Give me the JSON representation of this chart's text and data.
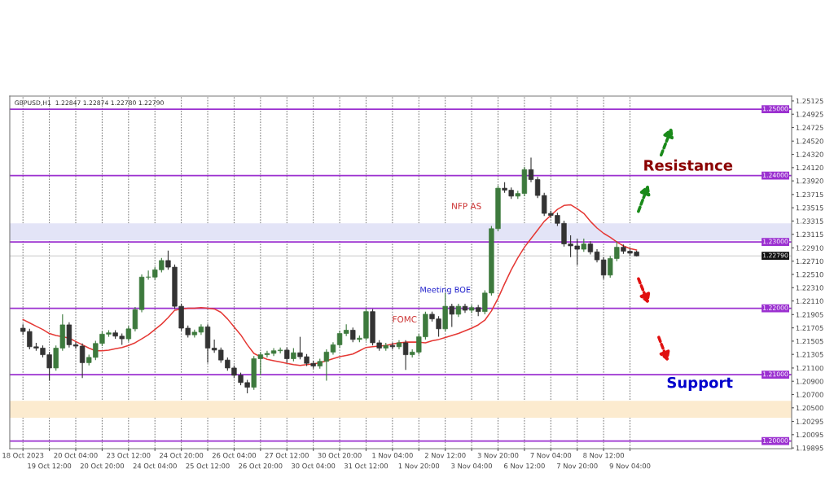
{
  "chart_data": {
    "type": "candlestick",
    "annotations": [
      "GBPUSD,H1  1.22847 1.22874 1.22780 1.22790",
      "FOMC",
      "Meeting BOE",
      "NFP AS",
      "Resistance",
      "Support"
    ],
    "categories": [
      "18 Oct 2023",
      null,
      null,
      null,
      "19 Oct 12:00",
      null,
      null,
      null,
      "20 Oct 04:00",
      null,
      null,
      null,
      "20 Oct 20:00",
      null,
      null,
      null,
      "23 Oct 12:00",
      null,
      null,
      null,
      "24 Oct 04:00",
      null,
      null,
      null,
      "24 Oct 20:00",
      null,
      null,
      null,
      "25 Oct 12:00",
      null,
      null,
      null,
      "26 Oct 04:00",
      null,
      null,
      null,
      "26 Oct 20:00",
      null,
      null,
      null,
      "27 Oct 12:00",
      null,
      null,
      null,
      "30 Oct 04:00",
      null,
      null,
      null,
      "30 Oct 20:00",
      null,
      null,
      null,
      "31 Oct 12:00",
      null,
      null,
      null,
      "1 Nov 04:00",
      null,
      null,
      null,
      "1 Nov 20:00",
      null,
      null,
      null,
      "2 Nov 12:00",
      null,
      null,
      null,
      "3 Nov 04:00",
      null,
      null,
      null,
      "3 Nov 20:00",
      null,
      null,
      null,
      "6 Nov 12:00",
      null,
      null,
      null,
      "7 Nov 04:00",
      null,
      null,
      null,
      "7 Nov 20:00",
      null,
      null,
      null,
      "8 Nov 12:00",
      null,
      null,
      null,
      "9 Nov 04:00",
      null,
      null,
      null,
      null,
      null,
      null,
      null,
      null,
      null,
      null,
      null,
      null,
      null,
      null,
      null,
      null,
      null,
      null,
      null,
      null,
      null,
      null,
      null,
      null
    ],
    "colors": [
      "#333333",
      "#333333",
      "#333333",
      "#333333",
      "#333333",
      "#3d7a3d",
      "#3d7a3d",
      "#333333",
      "#333333",
      "#333333",
      "#3d7a3d",
      "#3d7a3d",
      "#3d7a3d",
      "#3d7a3d",
      "#333333",
      "#333333",
      "#3d7a3d",
      "#3d7a3d",
      "#3d7a3d",
      "#3d7a3d",
      "#3d7a3d",
      "#3d7a3d",
      "#333333",
      "#333333",
      "#333333",
      "#333333",
      "#3d7a3d",
      "#3d7a3d",
      "#333333",
      "#333333",
      "#333333",
      "#333333",
      "#333333",
      "#333333",
      "#333333",
      "#3d7a3d",
      "#3d7a3d",
      "#3d7a3d",
      "#3d7a3d",
      "#3d7a3d",
      "#333333",
      "#3d7a3d",
      "#333333",
      "#333333",
      "#333333",
      "#3d7a3d",
      "#3d7a3d",
      "#3d7a3d",
      "#3d7a3d",
      "#3d7a3d",
      "#333333",
      "#3d7a3d",
      "#3d7a3d",
      "#333333",
      "#333333",
      "#3d7a3d",
      "#333333",
      "#3d7a3d",
      "#333333",
      "#3d7a3d",
      "#3d7a3d",
      "#3d7a3d",
      "#333333",
      "#333333",
      "#3d7a3d",
      "#333333",
      "#3d7a3d",
      "#333333",
      "#3d7a3d",
      "#333333",
      "#3d7a3d",
      "#3d7a3d",
      "#3d7a3d",
      "#333333",
      "#333333",
      "#3d7a3d",
      "#3d7a3d",
      "#333333",
      "#333333",
      "#333333",
      "#333333",
      "#333333",
      "#333333",
      "#333333",
      "#333333",
      "#3d7a3d",
      "#333333",
      "#333333",
      "#333333",
      "#3d7a3d",
      "#3d7a3d",
      "#333333",
      "#333333",
      "#333333",
      null,
      null,
      null,
      null,
      null,
      null,
      null,
      null,
      null,
      null,
      null,
      null,
      null,
      null,
      null,
      null,
      null,
      null,
      null,
      null,
      null,
      null,
      null
    ],
    "ohlc": [
      [
        1.217,
        1.2176,
        1.216,
        1.2165
      ],
      [
        1.2165,
        1.2169,
        1.2138,
        1.2142
      ],
      [
        1.2142,
        1.2148,
        1.2136,
        1.214
      ],
      [
        1.214,
        1.2144,
        1.2126,
        1.213
      ],
      [
        1.213,
        1.2134,
        1.2091,
        1.211
      ],
      [
        1.211,
        1.2144,
        1.2106,
        1.214
      ],
      [
        1.214,
        1.2191,
        1.2136,
        1.2175
      ],
      [
        1.2175,
        1.2179,
        1.2141,
        1.2145
      ],
      [
        1.2145,
        1.2149,
        1.2139,
        1.2143
      ],
      [
        1.2143,
        1.2147,
        1.2095,
        1.2118
      ],
      [
        1.2118,
        1.213,
        1.2114,
        1.2126
      ],
      [
        1.2126,
        1.2151,
        1.2122,
        1.2147
      ],
      [
        1.2147,
        1.2165,
        1.2143,
        1.2161
      ],
      [
        1.2161,
        1.2167,
        1.2157,
        1.2163
      ],
      [
        1.2163,
        1.2167,
        1.2154,
        1.2158
      ],
      [
        1.2158,
        1.2162,
        1.2145,
        1.2154
      ],
      [
        1.2154,
        1.2173,
        1.215,
        1.2169
      ],
      [
        1.2169,
        1.2202,
        1.2165,
        1.2198
      ],
      [
        1.2198,
        1.2251,
        1.2194,
        1.2247
      ],
      [
        1.2247,
        1.2257,
        1.2243,
        1.2247
      ],
      [
        1.2247,
        1.2262,
        1.2243,
        1.2258
      ],
      [
        1.2258,
        1.2276,
        1.2254,
        1.2272
      ],
      [
        1.2272,
        1.2287,
        1.2258,
        1.2262
      ],
      [
        1.2262,
        1.2266,
        1.2199,
        1.2203
      ],
      [
        1.2203,
        1.2207,
        1.2166,
        1.217
      ],
      [
        1.217,
        1.2174,
        1.2156,
        1.216
      ],
      [
        1.216,
        1.2168,
        1.2156,
        1.2164
      ],
      [
        1.2164,
        1.2176,
        1.216,
        1.2172
      ],
      [
        1.2172,
        1.2176,
        1.2118,
        1.214
      ],
      [
        1.214,
        1.2153,
        1.2133,
        1.2137
      ],
      [
        1.2137,
        1.2141,
        1.2118,
        1.2122
      ],
      [
        1.2122,
        1.2126,
        1.2106,
        1.211
      ],
      [
        1.211,
        1.2114,
        1.2095,
        1.2099
      ],
      [
        1.2099,
        1.2103,
        1.2084,
        1.2088
      ],
      [
        1.2088,
        1.2092,
        1.2072,
        1.2081
      ],
      [
        1.2081,
        1.2128,
        1.2077,
        1.2124
      ],
      [
        1.2124,
        1.2134,
        1.2099,
        1.213
      ],
      [
        1.213,
        1.2136,
        1.2126,
        1.2132
      ],
      [
        1.2132,
        1.214,
        1.2128,
        1.2136
      ],
      [
        1.2136,
        1.2141,
        1.2132,
        1.2137
      ],
      [
        1.2137,
        1.2141,
        1.2118,
        1.2124
      ],
      [
        1.2124,
        1.214,
        1.212,
        1.2133
      ],
      [
        1.2133,
        1.2157,
        1.2123,
        1.2127
      ],
      [
        1.2127,
        1.2131,
        1.2113,
        1.2117
      ],
      [
        1.2117,
        1.2121,
        1.2109,
        1.2113
      ],
      [
        1.2113,
        1.2124,
        1.2109,
        1.212
      ],
      [
        1.212,
        1.2138,
        1.2091,
        1.2134
      ],
      [
        1.2134,
        1.2149,
        1.213,
        1.2145
      ],
      [
        1.2145,
        1.2166,
        1.2141,
        1.2162
      ],
      [
        1.2162,
        1.2176,
        1.2158,
        1.2167
      ],
      [
        1.2167,
        1.2171,
        1.2149,
        1.2153
      ],
      [
        1.2153,
        1.2159,
        1.2149,
        1.2155
      ],
      [
        1.2155,
        1.22,
        1.2151,
        1.2195
      ],
      [
        1.2195,
        1.2199,
        1.2144,
        1.2148
      ],
      [
        1.2148,
        1.2152,
        1.2136,
        1.214
      ],
      [
        1.214,
        1.2148,
        1.2136,
        1.2144
      ],
      [
        1.2144,
        1.2148,
        1.2138,
        1.2142
      ],
      [
        1.2142,
        1.2152,
        1.2138,
        1.2148
      ],
      [
        1.2148,
        1.2152,
        1.2107,
        1.213
      ],
      [
        1.213,
        1.2138,
        1.2126,
        1.2134
      ],
      [
        1.2134,
        1.2161,
        1.213,
        1.2157
      ],
      [
        1.2157,
        1.2195,
        1.2153,
        1.2191
      ],
      [
        1.2191,
        1.2195,
        1.218,
        1.2184
      ],
      [
        1.2184,
        1.2188,
        1.2157,
        1.2169
      ],
      [
        1.2169,
        1.2223,
        1.2165,
        1.2203
      ],
      [
        1.2203,
        1.2207,
        1.2172,
        1.2191
      ],
      [
        1.2191,
        1.2207,
        1.2187,
        1.2203
      ],
      [
        1.2203,
        1.2207,
        1.2193,
        1.2197
      ],
      [
        1.2197,
        1.2205,
        1.2193,
        1.2201
      ],
      [
        1.2201,
        1.2205,
        1.2188,
        1.2195
      ],
      [
        1.2195,
        1.2227,
        1.2191,
        1.2223
      ],
      [
        1.2223,
        1.2324,
        1.2219,
        1.232
      ],
      [
        1.232,
        1.2385,
        1.2316,
        1.2381
      ],
      [
        1.2381,
        1.239,
        1.2374,
        1.2378
      ],
      [
        1.2378,
        1.2382,
        1.2365,
        1.2369
      ],
      [
        1.2369,
        1.2377,
        1.2365,
        1.2373
      ],
      [
        1.2373,
        1.2413,
        1.2369,
        1.2409
      ],
      [
        1.2409,
        1.2427,
        1.239,
        1.2394
      ],
      [
        1.2394,
        1.2398,
        1.2366,
        1.237
      ],
      [
        1.237,
        1.2374,
        1.2339,
        1.2343
      ],
      [
        1.2343,
        1.2347,
        1.2336,
        1.234
      ],
      [
        1.234,
        1.2344,
        1.2324,
        1.2328
      ],
      [
        1.2328,
        1.2332,
        1.2293,
        1.2297
      ],
      [
        1.2297,
        1.231,
        1.2277,
        1.2294
      ],
      [
        1.2294,
        1.2305,
        1.2265,
        1.2289
      ],
      [
        1.2289,
        1.2305,
        1.2285,
        1.2297
      ],
      [
        1.2297,
        1.2301,
        1.2281,
        1.2285
      ],
      [
        1.2285,
        1.2289,
        1.2269,
        1.2273
      ],
      [
        1.2273,
        1.2277,
        1.2244,
        1.225
      ],
      [
        1.225,
        1.2279,
        1.2246,
        1.2275
      ],
      [
        1.2275,
        1.2301,
        1.2271,
        1.2292
      ],
      [
        1.2292,
        1.2296,
        1.2282,
        1.2286
      ],
      [
        1.2286,
        1.229,
        1.2279,
        1.2283
      ],
      [
        1.2285,
        1.2287,
        1.2278,
        1.2279
      ],
      null,
      null,
      null,
      null,
      null,
      null,
      null,
      null,
      null,
      null,
      null,
      null,
      null,
      null,
      null,
      null,
      null,
      null,
      null,
      null,
      null,
      null,
      null
    ],
    "series": [
      {
        "type": "line",
        "color": "#e53935",
        "values": [
          1.2183,
          1.2178,
          1.2173,
          1.2168,
          1.2162,
          1.2159,
          1.2157,
          1.2155,
          1.215,
          1.2145,
          1.214,
          1.2136,
          1.2136,
          1.2137,
          1.2139,
          1.2141,
          1.2144,
          1.2148,
          1.2154,
          1.216,
          1.2168,
          1.2176,
          1.2186,
          1.2197,
          1.2199,
          1.22,
          1.22,
          1.2201,
          1.22,
          1.2199,
          1.2194,
          1.2184,
          1.2172,
          1.216,
          1.2145,
          1.2132,
          1.2127,
          1.2123,
          1.2121,
          1.2119,
          1.2117,
          1.2115,
          1.2114,
          1.2115,
          1.2116,
          1.2118,
          1.2121,
          1.2124,
          1.2127,
          1.2129,
          1.2131,
          1.2136,
          1.2141,
          1.2142,
          1.2143,
          1.2144,
          1.2146,
          1.2148,
          1.2149,
          1.2149,
          1.2149,
          1.2148,
          1.2151,
          1.2153,
          1.2156,
          1.2159,
          1.2162,
          1.2166,
          1.217,
          1.2175,
          1.2182,
          1.2196,
          1.2215,
          1.2237,
          1.2258,
          1.2276,
          1.2292,
          1.2305,
          1.2318,
          1.2331,
          1.234,
          1.2349,
          1.2355,
          1.2356,
          1.235,
          1.2343,
          1.2331,
          1.2321,
          1.2313,
          1.2307,
          1.23,
          1.2294,
          1.229,
          1.2288,
          null,
          null,
          null,
          null,
          null,
          null,
          null,
          null,
          null,
          null,
          null,
          null,
          null,
          null,
          null,
          null,
          null,
          null,
          null,
          null,
          null,
          null,
          null
        ]
      }
    ],
    "ylim": [
      1.19884,
      1.25198
    ],
    "yticks": [
      {
        "value": 1.25125,
        "label": "1.25125"
      },
      {
        "value": 1.24925,
        "label": "1.24925"
      },
      {
        "value": 1.24725,
        "label": "1.24725"
      },
      {
        "value": 1.2452,
        "label": "1.24520"
      },
      {
        "value": 1.2432,
        "label": "1.24320"
      },
      {
        "value": 1.2412,
        "label": "1.24120"
      },
      {
        "value": 1.2392,
        "label": "1.23920"
      },
      {
        "value": 1.23715,
        "label": "1.23715"
      },
      {
        "value": 1.23515,
        "label": "1.23515"
      },
      {
        "value": 1.23315,
        "label": "1.23315"
      },
      {
        "value": 1.23115,
        "label": "1.23115"
      },
      {
        "value": 1.2291,
        "label": "1.22910"
      },
      {
        "value": 1.2271,
        "label": "1.22710"
      },
      {
        "value": 1.2251,
        "label": "1.22510"
      },
      {
        "value": 1.2231,
        "label": "1.22310"
      },
      {
        "value": 1.2211,
        "label": "1.22110"
      },
      {
        "value": 1.21905,
        "label": "1.21905"
      },
      {
        "value": 1.21705,
        "label": "1.21705"
      },
      {
        "value": 1.21505,
        "label": "1.21505"
      },
      {
        "value": 1.21305,
        "label": "1.21305"
      },
      {
        "value": 1.211,
        "label": "1.21100"
      },
      {
        "value": 1.209,
        "label": "1.20900"
      },
      {
        "value": 1.207,
        "label": "1.20700"
      },
      {
        "value": 1.205,
        "label": "1.20500"
      },
      {
        "value": 1.20295,
        "label": "1.20295"
      },
      {
        "value": 1.20095,
        "label": "1.20095"
      },
      {
        "value": 1.19895,
        "label": "1.19895"
      }
    ],
    "grid": "x",
    "bands": [
      {
        "axis": "y",
        "from": 1.23023,
        "to": 1.23279,
        "color": "#e3e4f7"
      },
      {
        "axis": "y",
        "from": 1.20349,
        "to": 1.20605,
        "color": "#fcebcf"
      }
    ],
    "ref_lines": [
      {
        "axis": "y",
        "value": 1.25,
        "label": "1.25000",
        "color": "#9b30d0"
      },
      {
        "axis": "y",
        "value": 1.24,
        "label": "1.24000",
        "color": "#9b30d0"
      },
      {
        "axis": "y",
        "value": 1.23,
        "label": "1.23000",
        "color": "#9b30d0"
      },
      {
        "axis": "y",
        "value": 1.22,
        "label": "1.22000",
        "color": "#9b30d0"
      },
      {
        "axis": "y",
        "value": 1.21,
        "label": "1.21000",
        "color": "#9b30d0"
      },
      {
        "axis": "y",
        "value": 1.2,
        "label": "1.20000",
        "color": "#9b30d0"
      },
      {
        "axis": "y",
        "value": 1.2279,
        "label": "1.22790",
        "color": "#c8c8c8"
      }
    ]
  }
}
